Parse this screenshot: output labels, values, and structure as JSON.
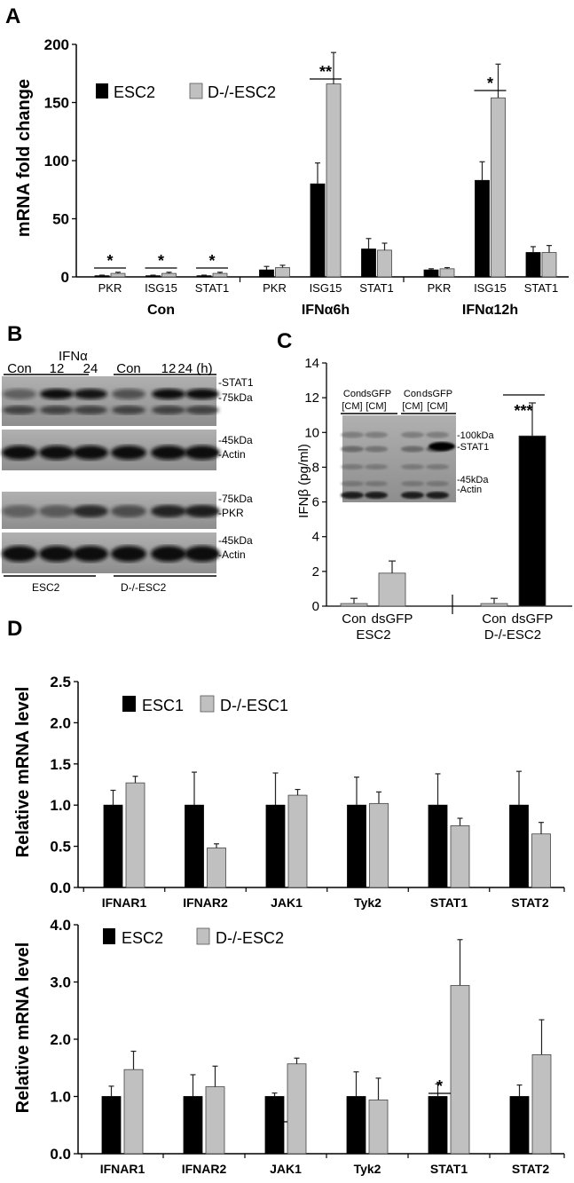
{
  "panels": {
    "A": "A",
    "B": "B",
    "C": "C",
    "D": "D"
  },
  "colors": {
    "black_bar": "#000000",
    "gray_bar": "#c0c0c0",
    "blot_bg": "#9a9a9a"
  },
  "chart_data": [
    {
      "id": "A",
      "type": "bar",
      "ylabel": "mRNA fold change",
      "ylim": [
        0,
        200
      ],
      "yticks": [
        "0",
        "50",
        "100",
        "150",
        "200"
      ],
      "legend": [
        "ESC2",
        "D-/-ESC2"
      ],
      "groups": [
        "Con",
        "IFNα6h",
        "IFNα12h"
      ],
      "categories": [
        "PKR",
        "ISG15",
        "STAT1",
        "PKR",
        "ISG15",
        "STAT1",
        "PKR",
        "ISG15",
        "STAT1"
      ],
      "series": [
        {
          "name": "ESC2",
          "values": [
            1,
            1,
            1,
            6,
            80,
            24,
            6,
            83,
            21
          ],
          "err": [
            0.5,
            0.5,
            0.5,
            3,
            18,
            9,
            1,
            16,
            5
          ]
        },
        {
          "name": "D-/-ESC2",
          "values": [
            3,
            3,
            3,
            8,
            166,
            23,
            7,
            154,
            21
          ],
          "err": [
            1,
            1,
            1,
            2,
            27,
            6,
            1,
            29,
            6
          ]
        }
      ],
      "significance": [
        {
          "cat": 0,
          "label": "*"
        },
        {
          "cat": 1,
          "label": "*"
        },
        {
          "cat": 2,
          "label": "*"
        },
        {
          "cat": 4,
          "label": "**"
        },
        {
          "cat": 7,
          "label": "*"
        }
      ]
    },
    {
      "id": "C",
      "type": "bar",
      "ylabel": "IFNβ (pg/ml)",
      "ylim": [
        0,
        14
      ],
      "yticks": [
        "0",
        "2",
        "4",
        "6",
        "8",
        "10",
        "12",
        "14"
      ],
      "categories": [
        "Con",
        "dsGFP",
        "Con",
        "dsGFP"
      ],
      "groups": [
        "ESC2",
        "D-/-ESC2"
      ],
      "values": [
        0.15,
        1.9,
        0.15,
        9.8
      ],
      "err": [
        0.3,
        0.7,
        0.3,
        1.9
      ],
      "significance": "***"
    },
    {
      "id": "D1",
      "type": "bar",
      "ylabel": "Relative mRNA level",
      "ylim": [
        0,
        2.5
      ],
      "yticks": [
        "0.0",
        "0.5",
        "1.0",
        "1.5",
        "2.0",
        "2.5"
      ],
      "legend": [
        "ESC1",
        "D-/-ESC1"
      ],
      "categories": [
        "IFNAR1",
        "IFNAR2",
        "JAK1",
        "Tyk2",
        "STAT1",
        "STAT2"
      ],
      "series": [
        {
          "name": "ESC1",
          "values": [
            1.0,
            1.0,
            1.0,
            1.0,
            1.0,
            1.0
          ],
          "err": [
            0.18,
            0.4,
            0.39,
            0.34,
            0.38,
            0.41
          ]
        },
        {
          "name": "D-/-ESC1",
          "values": [
            1.27,
            0.48,
            1.12,
            1.02,
            0.75,
            0.65
          ],
          "err": [
            0.08,
            0.05,
            0.07,
            0.14,
            0.09,
            0.14
          ]
        }
      ]
    },
    {
      "id": "D2",
      "type": "bar",
      "ylabel": "Relative mRNA level",
      "ylim": [
        0,
        4
      ],
      "yticks": [
        "0.0",
        "1.0",
        "2.0",
        "3.0",
        "4.0"
      ],
      "legend": [
        "ESC2",
        "D-/-ESC2"
      ],
      "categories": [
        "IFNAR1",
        "IFNAR2",
        "JAK1",
        "Tyk2",
        "STAT1",
        "STAT2"
      ],
      "series": [
        {
          "name": "ESC2",
          "values": [
            1.0,
            1.0,
            1.0,
            1.0,
            1.0,
            1.0
          ],
          "err": [
            0.18,
            0.38,
            0.06,
            0.43,
            0.22,
            0.2
          ]
        },
        {
          "name": "D-/-ESC2",
          "values": [
            1.47,
            1.17,
            1.57,
            0.94,
            2.94,
            1.73
          ],
          "err": [
            0.32,
            0.36,
            0.1,
            0.38,
            0.8,
            0.61
          ]
        }
      ],
      "significance": [
        {
          "cat": 2,
          "label": "**"
        },
        {
          "cat": 4,
          "label": "*"
        }
      ]
    }
  ],
  "blotB": {
    "header": "IFNα",
    "lanes": [
      "Con",
      "12",
      "24",
      "Con",
      "12",
      "24 (h)"
    ],
    "labels_top": [
      "-STAT1",
      "-75kDa",
      "-45kDa",
      "-Actin"
    ],
    "labels_bottom": [
      "-75kDa",
      "-PKR",
      "-45kDa",
      "-Actin"
    ],
    "groups": [
      "ESC2",
      "D-/-ESC2"
    ]
  },
  "blotC": {
    "lanes": [
      "Con",
      "dsGFP",
      "Con",
      "dsGFP"
    ],
    "lane_sub": [
      "[CM]",
      "[CM]",
      "[CM]",
      "[CM]"
    ],
    "labels": [
      "-100kDa",
      "-STAT1",
      "-45kDa",
      "-Actin"
    ]
  }
}
